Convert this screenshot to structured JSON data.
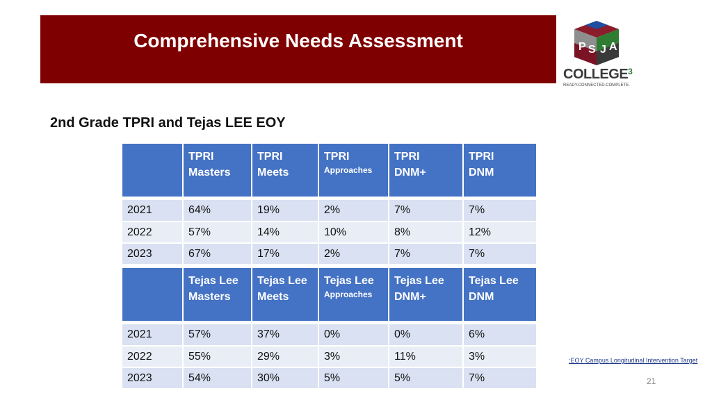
{
  "header": {
    "title": "Comprehensive Needs Assessment"
  },
  "logo": {
    "letters": [
      "P",
      "S",
      "J",
      "A"
    ],
    "word": "COLLEGE",
    "superscript": "3",
    "tagline": "READY.CONNECTED.COMPLETE."
  },
  "subtitle": "2nd Grade TPRI and Tejas LEE EOY",
  "tpri": {
    "headers": [
      {
        "line1": "TPRI",
        "line2": "Masters"
      },
      {
        "line1": "TPRI",
        "line2": "Meets"
      },
      {
        "line1": "TPRI",
        "line2": "Approaches"
      },
      {
        "line1": "TPRI",
        "line2": "DNM+"
      },
      {
        "line1": "TPRI",
        "line2": "DNM"
      }
    ],
    "rows": [
      {
        "year": "2021",
        "values": [
          "64%",
          "19%",
          "2%",
          "7%",
          "7%"
        ]
      },
      {
        "year": "2022",
        "values": [
          "57%",
          "14%",
          "10%",
          "8%",
          "12%"
        ]
      },
      {
        "year": "2023",
        "values": [
          "67%",
          "17%",
          "2%",
          "7%",
          "7%"
        ]
      }
    ]
  },
  "tejas": {
    "headers": [
      {
        "line1": "Tejas Lee",
        "line2": "Masters"
      },
      {
        "line1": "Tejas Lee",
        "line2": "Meets"
      },
      {
        "line1": "Tejas Lee",
        "line2": "Approaches"
      },
      {
        "line1": "Tejas Lee",
        "line2": "DNM+"
      },
      {
        "line1": "Tejas Lee",
        "line2": "DNM"
      }
    ],
    "rows": [
      {
        "year": "2021",
        "values": [
          "57%",
          "37%",
          "0%",
          "0%",
          "6%"
        ]
      },
      {
        "year": "2022",
        "values": [
          "55%",
          "29%",
          "3%",
          "11%",
          "3%"
        ]
      },
      {
        "year": "2023",
        "values": [
          "54%",
          "30%",
          "5%",
          "5%",
          "7%"
        ]
      }
    ]
  },
  "footnote": ":EOY Campus Longitudinal Intervention Target",
  "page_number": "21",
  "colors": {
    "banner": "#7f0000",
    "header_cell": "#4472c4",
    "row_a": "#d9e1f2",
    "row_b": "#e9edf6"
  }
}
